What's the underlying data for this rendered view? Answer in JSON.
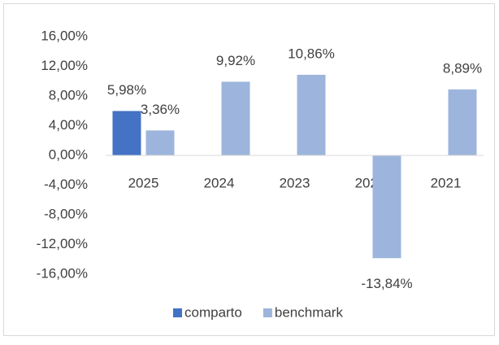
{
  "chart_data": {
    "type": "bar",
    "categories": [
      "2025",
      "2024",
      "2023",
      "2022",
      "2021"
    ],
    "series": [
      {
        "name": "comparto",
        "color": "#4472c4",
        "values": [
          5.98,
          null,
          null,
          null,
          null
        ],
        "value_labels": [
          "5,98%",
          null,
          null,
          null,
          null
        ]
      },
      {
        "name": "benchmark",
        "color": "#9db5dc",
        "values": [
          3.36,
          9.92,
          10.86,
          -13.84,
          8.89
        ],
        "value_labels": [
          "3,36%",
          "9,92%",
          "10,86%",
          "-13,84%",
          "8,89%"
        ]
      }
    ],
    "ylim": [
      -16,
      16
    ],
    "yticks": [
      {
        "value": 16,
        "label": "16,00%"
      },
      {
        "value": 12,
        "label": "12,00%"
      },
      {
        "value": 8,
        "label": "8,00%"
      },
      {
        "value": 4,
        "label": "4,00%"
      },
      {
        "value": 0,
        "label": "0,00%"
      },
      {
        "value": -4,
        "label": "-4,00%"
      },
      {
        "value": -8,
        "label": "-8,00%"
      },
      {
        "value": -12,
        "label": "-12,00%"
      },
      {
        "value": -16,
        "label": "-16,00%"
      }
    ],
    "grid": false,
    "legend": "bottom"
  }
}
